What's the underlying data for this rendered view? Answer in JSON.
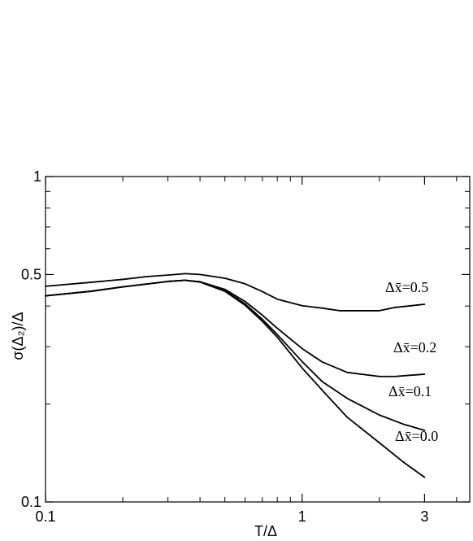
{
  "chart_data": {
    "type": "line",
    "xlabel": "T/Δ",
    "ylabel": "σ(Δ₂)/Δ",
    "xscale": "log",
    "yscale": "log",
    "xlim": [
      0.1,
      4.5
    ],
    "ylim": [
      0.1,
      1.0
    ],
    "x_ticks": [
      {
        "value": 0.1,
        "label": "0.1"
      },
      {
        "value": 1,
        "label": "1"
      },
      {
        "value": 3,
        "label": "3"
      }
    ],
    "y_ticks": [
      {
        "value": 0.1,
        "label": "0.1"
      },
      {
        "value": 0.5,
        "label": "0.5"
      },
      {
        "value": 1,
        "label": "1"
      }
    ],
    "grid": false,
    "legend": "inline labels at right end of each curve",
    "series": [
      {
        "name": "Δx̄=0.5",
        "x": [
          0.1,
          0.15,
          0.2,
          0.25,
          0.3,
          0.35,
          0.4,
          0.5,
          0.6,
          0.7,
          0.8,
          1.0,
          1.2,
          1.4,
          1.6,
          2.0,
          2.3,
          3.0
        ],
        "y": [
          0.46,
          0.473,
          0.483,
          0.493,
          0.498,
          0.503,
          0.5,
          0.487,
          0.468,
          0.443,
          0.42,
          0.401,
          0.394,
          0.387,
          0.387,
          0.387,
          0.396,
          0.405
        ]
      },
      {
        "name": "Δx̄=0.2",
        "x": [
          0.1,
          0.15,
          0.2,
          0.3,
          0.35,
          0.4,
          0.5,
          0.6,
          0.7,
          0.8,
          1.0,
          1.2,
          1.5,
          2.0,
          2.3,
          3.0
        ],
        "y": [
          0.43,
          0.444,
          0.458,
          0.476,
          0.48,
          0.475,
          0.45,
          0.413,
          0.375,
          0.342,
          0.296,
          0.269,
          0.25,
          0.243,
          0.243,
          0.247
        ]
      },
      {
        "name": "Δx̄=0.1",
        "x": [
          0.1,
          0.15,
          0.2,
          0.3,
          0.35,
          0.4,
          0.5,
          0.6,
          0.7,
          0.8,
          1.0,
          1.2,
          1.5,
          2.0,
          2.5,
          3.0
        ],
        "y": [
          0.43,
          0.444,
          0.458,
          0.476,
          0.48,
          0.474,
          0.446,
          0.406,
          0.364,
          0.327,
          0.27,
          0.234,
          0.208,
          0.185,
          0.173,
          0.166
        ]
      },
      {
        "name": "Δx̄=0.0",
        "x": [
          0.1,
          0.15,
          0.2,
          0.3,
          0.35,
          0.4,
          0.5,
          0.6,
          0.7,
          0.8,
          1.0,
          1.2,
          1.5,
          2.0,
          2.5,
          3.0
        ],
        "y": [
          0.43,
          0.444,
          0.458,
          0.476,
          0.48,
          0.474,
          0.444,
          0.402,
          0.359,
          0.321,
          0.258,
          0.22,
          0.182,
          0.152,
          0.132,
          0.119
        ]
      }
    ]
  }
}
